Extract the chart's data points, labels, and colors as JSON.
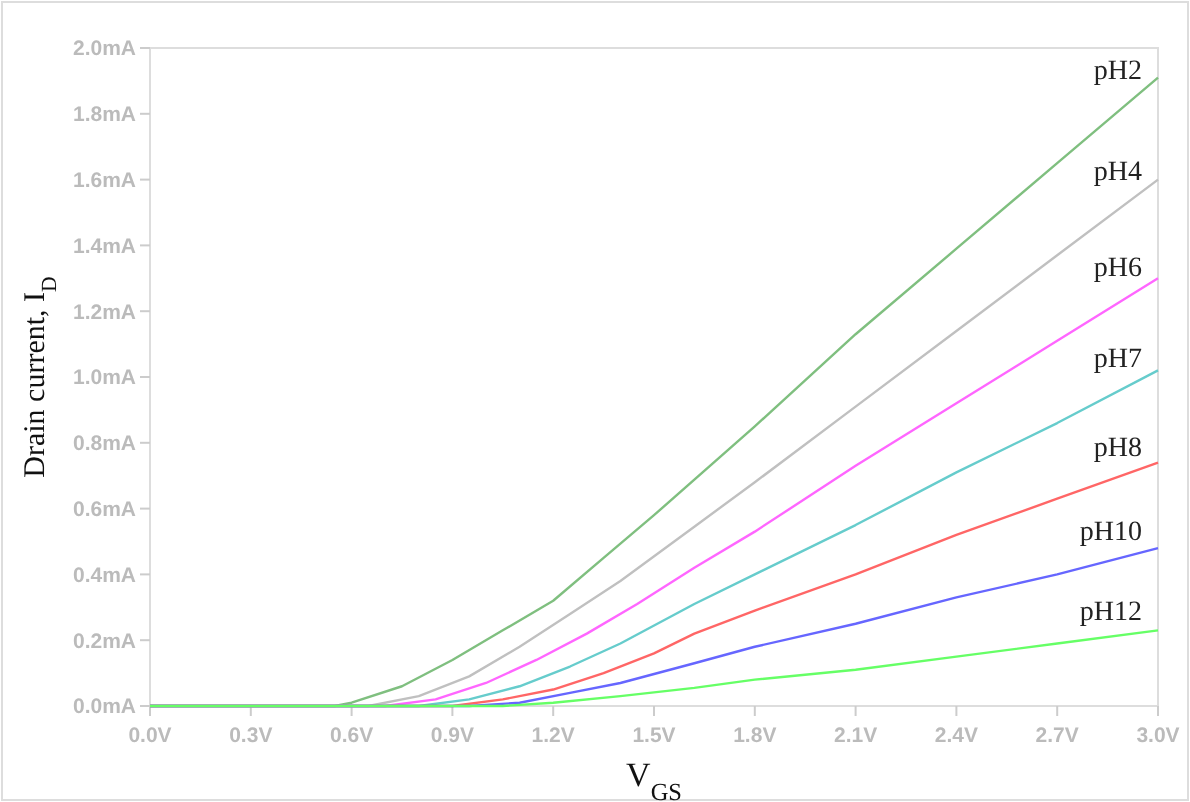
{
  "chart_data": {
    "type": "line",
    "xlabel": "V$_{GS}$",
    "ylabel": "Drain current, I$_{D}$",
    "xlim": [
      0,
      3.0
    ],
    "xticks": [
      {
        "value": 0,
        "label": "0.0V"
      },
      {
        "value": 0.3,
        "label": "0.3V"
      },
      {
        "value": 0.6,
        "label": "0.6V"
      },
      {
        "value": 0.9,
        "label": "0.9V"
      },
      {
        "value": 1.2,
        "label": "1.2V"
      },
      {
        "value": 1.5,
        "label": "1.5V"
      },
      {
        "value": 1.8,
        "label": "1.8V"
      },
      {
        "value": 2.1,
        "label": "2.1V"
      },
      {
        "value": 2.4,
        "label": "2.4V"
      },
      {
        "value": 2.7,
        "label": "2.7V"
      },
      {
        "value": 3.0,
        "label": "3.0V"
      }
    ],
    "ylim": [
      0,
      2.0
    ],
    "yticks": [
      {
        "value": 0,
        "label": "0.0mA"
      },
      {
        "value": 0.2,
        "label": "0.2mA"
      },
      {
        "value": 0.4,
        "label": "0.4mA"
      },
      {
        "value": 0.6,
        "label": "0.6mA"
      },
      {
        "value": 0.8,
        "label": "0.8mA"
      },
      {
        "value": 1.0,
        "label": "1.0mA"
      },
      {
        "value": 1.2,
        "label": "1.2mA"
      },
      {
        "value": 1.4,
        "label": "1.4mA"
      },
      {
        "value": 1.6,
        "label": "1.6mA"
      },
      {
        "value": 1.8,
        "label": "1.8mA"
      },
      {
        "value": 2.0,
        "label": "2.0mA"
      }
    ],
    "grid": false,
    "legend": false,
    "marker": "none",
    "line_style": "solid",
    "series": [
      {
        "name": "pH2",
        "color": "#7fbf7f",
        "x": [
          0,
          0.55,
          0.6,
          0.75,
          0.9,
          1.05,
          1.2,
          1.35,
          1.5,
          1.8,
          2.1,
          2.4,
          2.7,
          3.0
        ],
        "values": [
          0,
          0,
          0.01,
          0.06,
          0.14,
          0.23,
          0.32,
          0.45,
          0.58,
          0.85,
          1.13,
          1.39,
          1.65,
          1.91
        ]
      },
      {
        "name": "pH4",
        "color": "#c0c0c0",
        "x": [
          0,
          0.65,
          0.8,
          0.95,
          1.1,
          1.25,
          1.4,
          1.62,
          1.8,
          2.1,
          2.4,
          2.7,
          3.0
        ],
        "values": [
          0,
          0,
          0.03,
          0.09,
          0.18,
          0.28,
          0.38,
          0.545,
          0.68,
          0.91,
          1.14,
          1.37,
          1.6
        ]
      },
      {
        "name": "pH6",
        "color": "#ff66ff",
        "x": [
          0,
          0.7,
          0.85,
          1.0,
          1.15,
          1.3,
          1.45,
          1.62,
          1.8,
          2.1,
          2.4,
          2.7,
          3.0
        ],
        "values": [
          0,
          0,
          0.02,
          0.07,
          0.14,
          0.22,
          0.31,
          0.42,
          0.53,
          0.73,
          0.92,
          1.11,
          1.3
        ]
      },
      {
        "name": "pH7",
        "color": "#66cccc",
        "x": [
          0,
          0.8,
          0.95,
          1.1,
          1.25,
          1.4,
          1.62,
          1.8,
          2.1,
          2.4,
          2.7,
          3.0
        ],
        "values": [
          0,
          0,
          0.02,
          0.06,
          0.12,
          0.19,
          0.31,
          0.4,
          0.55,
          0.71,
          0.86,
          1.02
        ]
      },
      {
        "name": "pH8",
        "color": "#ff6666",
        "x": [
          0,
          0.9,
          1.05,
          1.2,
          1.35,
          1.5,
          1.62,
          1.8,
          2.1,
          2.4,
          2.7,
          3.0
        ],
        "values": [
          0,
          0,
          0.02,
          0.05,
          0.1,
          0.16,
          0.22,
          0.29,
          0.4,
          0.52,
          0.63,
          0.74
        ]
      },
      {
        "name": "pH10",
        "color": "#6666ff",
        "x": [
          0,
          0.95,
          1.1,
          1.25,
          1.4,
          1.62,
          1.8,
          2.1,
          2.4,
          2.7,
          3.0
        ],
        "values": [
          0,
          0,
          0.01,
          0.04,
          0.07,
          0.13,
          0.18,
          0.25,
          0.33,
          0.4,
          0.48
        ]
      },
      {
        "name": "pH12",
        "color": "#66ff66",
        "x": [
          0,
          1.05,
          1.2,
          1.4,
          1.62,
          1.8,
          2.1,
          2.4,
          2.7,
          3.0
        ],
        "values": [
          0,
          0,
          0.01,
          0.03,
          0.055,
          0.08,
          0.11,
          0.15,
          0.19,
          0.23
        ]
      }
    ]
  }
}
